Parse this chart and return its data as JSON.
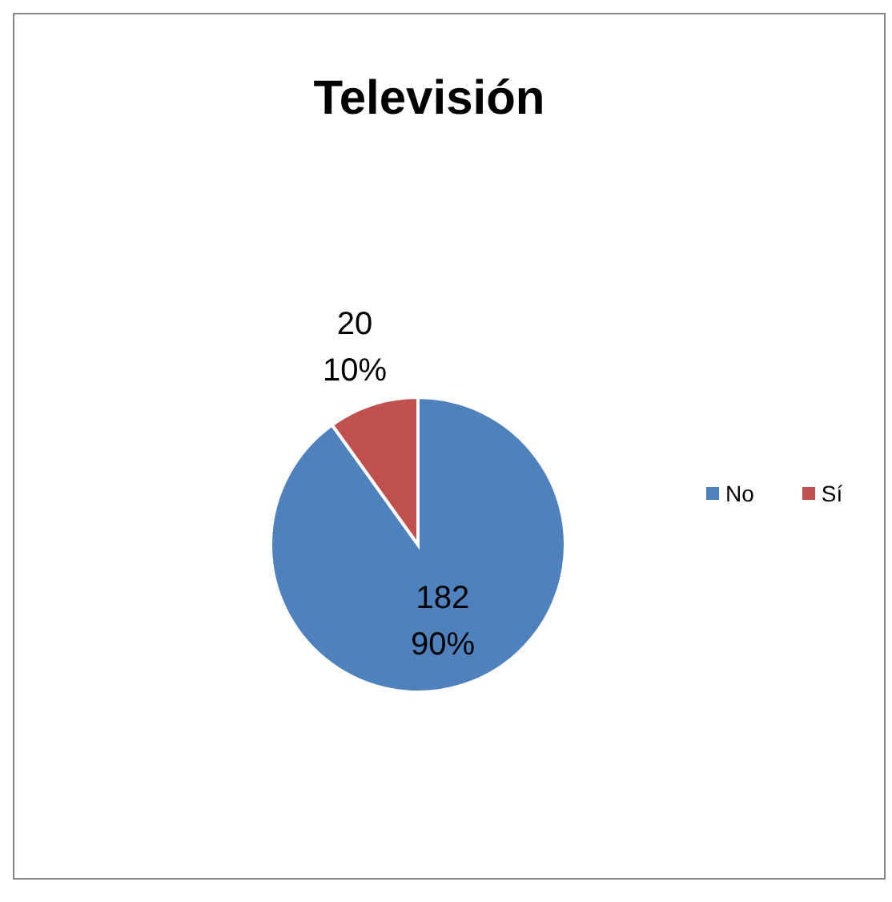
{
  "chart_data": {
    "type": "pie",
    "title": "Televisión",
    "categories": [
      "No",
      "Sí"
    ],
    "values": [
      182,
      20
    ],
    "colors": [
      "#4f81bd",
      "#c0504d"
    ],
    "value_labels": [
      "182\n90%",
      "20\n10%"
    ],
    "legend": "right"
  }
}
